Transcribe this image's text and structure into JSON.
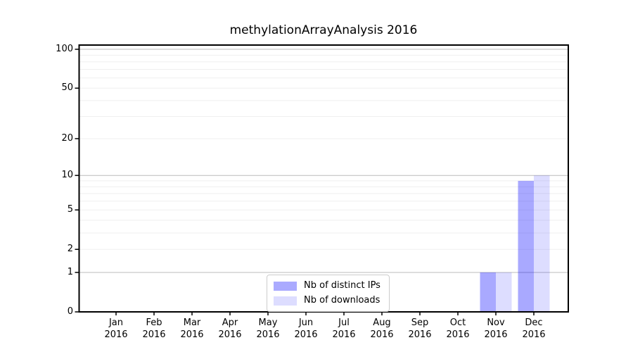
{
  "chart_title": "methylationArrayAnalysis 2016",
  "legend": {
    "items": [
      {
        "label": "Nb of distinct IPs",
        "color": "#aaaaff"
      },
      {
        "label": "Nb of downloads",
        "color": "#ddddff"
      }
    ]
  },
  "colors": {
    "bar_distinct_ips_fill": "#0000ff56",
    "bar_downloads_fill": "#0000ff22",
    "grid_major": "#bbbbbb",
    "grid_minor": "#efefef",
    "axis": "#000000",
    "legend_border": "#cccccc",
    "background": "#ffffff"
  },
  "chart_data": {
    "type": "bar",
    "title": "methylationArrayAnalysis 2016",
    "categories": [
      "Jan 2016",
      "Feb 2016",
      "Mar 2016",
      "Apr 2016",
      "May 2016",
      "Jun 2016",
      "Jul 2016",
      "Aug 2016",
      "Sep 2016",
      "Oct 2016",
      "Nov 2016",
      "Dec 2016"
    ],
    "series": [
      {
        "name": "Nb of distinct IPs",
        "color": "#aaaaff",
        "values": [
          0,
          0,
          0,
          0,
          0,
          0,
          0,
          0,
          0,
          0,
          1,
          9
        ]
      },
      {
        "name": "Nb of downloads",
        "color": "#ddddff",
        "values": [
          0,
          0,
          0,
          0,
          0,
          0,
          0,
          0,
          0,
          0,
          1,
          10
        ]
      }
    ],
    "xlabel": "",
    "ylabel": "",
    "yscale": "log1p",
    "ylim": [
      0,
      108
    ],
    "ytick_values": [
      0,
      1,
      2,
      5,
      10,
      20,
      50,
      100
    ],
    "major_gridlines": [
      1,
      10,
      100
    ],
    "minor_gridlines": [
      2,
      3,
      4,
      5,
      6,
      7,
      8,
      9,
      20,
      30,
      40,
      50,
      60,
      70,
      80,
      90
    ],
    "grid": "horizontal",
    "legend_position": "lower center"
  }
}
